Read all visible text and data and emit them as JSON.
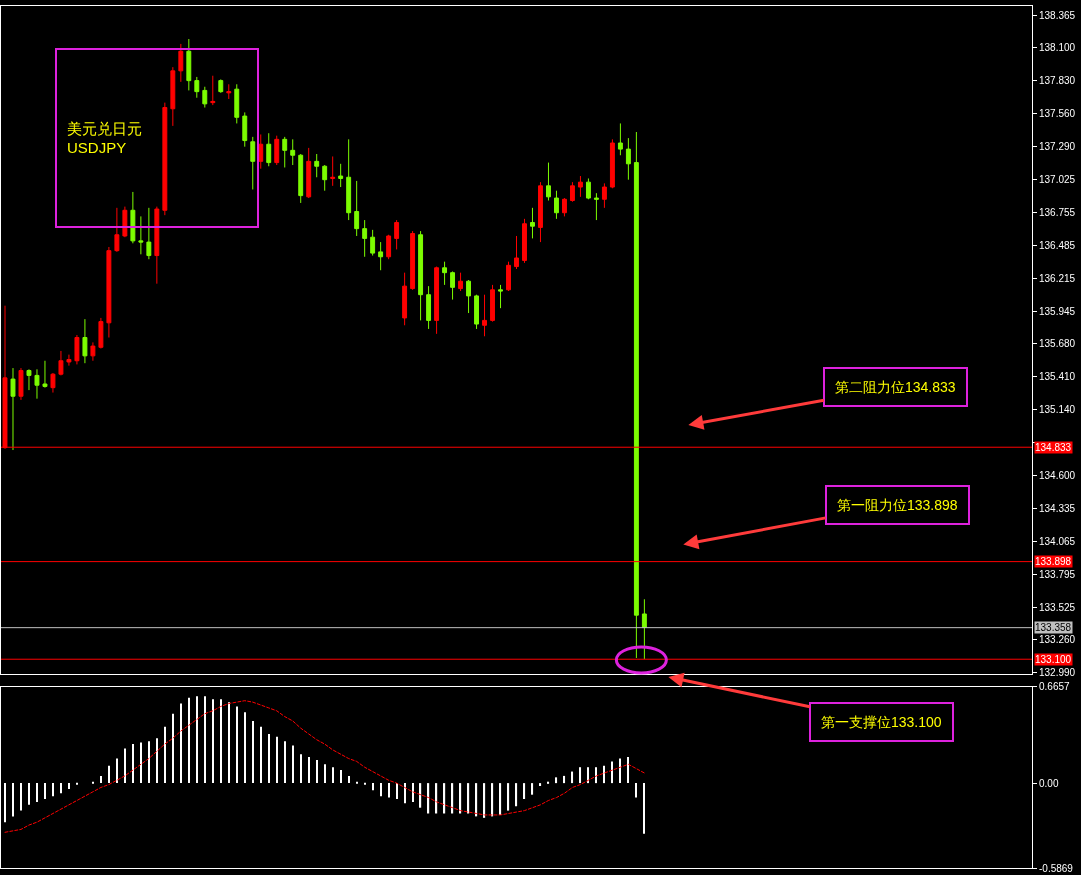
{
  "chart_data": [
    {
      "type": "candlestick",
      "categories": [
        null,
        null,
        null,
        null,
        null,
        null,
        null,
        null,
        null,
        null,
        null,
        null,
        null,
        null,
        null,
        null,
        null,
        null,
        null,
        null,
        null,
        null,
        null,
        null,
        null,
        null,
        null,
        null,
        null,
        null,
        null,
        null,
        null,
        null,
        null,
        null,
        null,
        null,
        null,
        null,
        null,
        null,
        null,
        null,
        null,
        null,
        null,
        null,
        null,
        null,
        null,
        null,
        null,
        null,
        null,
        null,
        null,
        null,
        null,
        null,
        null,
        null,
        null,
        null,
        null,
        null,
        null,
        null,
        null,
        null,
        null,
        null,
        null,
        null,
        null,
        null,
        null,
        null,
        null,
        null,
        null,
        null,
        null,
        null,
        null,
        null,
        null,
        null,
        null,
        null,
        null,
        null,
        null,
        null,
        null,
        null,
        null,
        null,
        null,
        null,
        null,
        null,
        null,
        null,
        null,
        null,
        null,
        null,
        null,
        null,
        null,
        null,
        null,
        null,
        null,
        null,
        null,
        null,
        null,
        null,
        null,
        null,
        null,
        null,
        null,
        null,
        null,
        null,
        null
      ],
      "ohlc": [
        [
          134.83,
          135.99,
          134.82,
          135.4
        ],
        [
          135.39,
          135.48,
          134.81,
          135.25
        ],
        [
          135.25,
          135.48,
          135.22,
          135.46
        ],
        [
          135.46,
          135.47,
          135.3,
          135.42
        ],
        [
          135.42,
          135.47,
          135.23,
          135.34
        ],
        [
          135.35,
          135.54,
          135.32,
          135.33
        ],
        [
          135.32,
          135.44,
          135.28,
          135.43
        ],
        [
          135.43,
          135.62,
          135.42,
          135.54
        ],
        [
          135.53,
          135.59,
          135.5,
          135.55
        ],
        [
          135.54,
          135.75,
          135.51,
          135.73
        ],
        [
          135.73,
          135.88,
          135.52,
          135.58
        ],
        [
          135.58,
          135.69,
          135.54,
          135.66
        ],
        [
          135.65,
          135.89,
          135.64,
          135.86
        ],
        [
          135.85,
          136.47,
          135.73,
          136.44
        ],
        [
          136.44,
          136.79,
          136.43,
          136.57
        ],
        [
          136.56,
          136.8,
          136.55,
          136.77
        ],
        [
          136.77,
          136.92,
          136.5,
          136.52
        ],
        [
          136.52,
          136.72,
          136.41,
          136.51
        ],
        [
          136.51,
          136.79,
          136.37,
          136.4
        ],
        [
          136.4,
          136.8,
          136.17,
          136.78
        ],
        [
          136.77,
          137.65,
          136.73,
          137.61
        ],
        [
          137.6,
          137.94,
          137.46,
          137.91
        ],
        [
          137.91,
          138.13,
          137.82,
          138.07
        ],
        [
          138.07,
          138.17,
          137.75,
          137.83
        ],
        [
          137.83,
          137.86,
          137.69,
          137.74
        ],
        [
          137.75,
          137.78,
          137.61,
          137.64
        ],
        [
          137.65,
          137.87,
          137.63,
          137.66
        ],
        [
          137.83,
          137.84,
          137.73,
          137.74
        ],
        [
          137.73,
          137.8,
          137.68,
          137.74
        ],
        [
          137.76,
          137.8,
          137.48,
          137.53
        ],
        [
          137.54,
          137.57,
          137.29,
          137.34
        ],
        [
          137.33,
          137.37,
          136.94,
          137.17
        ],
        [
          137.17,
          137.39,
          137.11,
          137.31
        ],
        [
          137.31,
          137.4,
          137.13,
          137.16
        ],
        [
          137.16,
          137.38,
          137.14,
          137.35
        ],
        [
          137.35,
          137.37,
          137.12,
          137.26
        ],
        [
          137.26,
          137.35,
          137.14,
          137.22
        ],
        [
          137.22,
          137.23,
          136.83,
          136.89
        ],
        [
          136.88,
          137.28,
          136.87,
          137.17
        ],
        [
          137.17,
          137.23,
          137.04,
          137.13
        ],
        [
          137.13,
          137.14,
          136.93,
          137.02
        ],
        [
          137.03,
          137.21,
          136.97,
          137.04
        ],
        [
          137.05,
          137.15,
          136.96,
          137.03
        ],
        [
          137.04,
          137.35,
          136.69,
          136.75
        ],
        [
          136.76,
          137.01,
          136.56,
          136.62
        ],
        [
          136.62,
          136.69,
          136.39,
          136.54
        ],
        [
          136.55,
          136.61,
          136.4,
          136.42
        ],
        [
          136.43,
          136.51,
          136.28,
          136.39
        ],
        [
          136.39,
          136.57,
          136.37,
          136.56
        ],
        [
          136.54,
          136.69,
          136.45,
          136.67
        ],
        [
          135.89,
          136.26,
          135.83,
          136.15
        ],
        [
          136.13,
          136.6,
          136.12,
          136.58
        ],
        [
          136.57,
          136.6,
          135.87,
          136.08
        ],
        [
          136.08,
          136.15,
          135.8,
          135.87
        ],
        [
          135.87,
          136.31,
          135.76,
          136.3
        ],
        [
          136.3,
          136.35,
          136.16,
          136.26
        ],
        [
          136.26,
          136.27,
          136.04,
          136.14
        ],
        [
          136.13,
          136.26,
          136.11,
          136.19
        ],
        [
          136.19,
          136.2,
          135.93,
          136.07
        ],
        [
          136.07,
          136.08,
          135.8,
          135.84
        ],
        [
          135.83,
          136.08,
          135.74,
          135.87
        ],
        [
          135.87,
          136.16,
          135.86,
          136.12
        ],
        [
          136.12,
          136.16,
          135.97,
          136.11
        ],
        [
          136.12,
          136.35,
          136.11,
          136.32
        ],
        [
          136.31,
          136.56,
          136.29,
          136.38
        ],
        [
          136.36,
          136.7,
          136.34,
          136.66
        ],
        [
          136.67,
          136.79,
          136.54,
          136.64
        ],
        [
          136.63,
          137.0,
          136.51,
          136.97
        ],
        [
          136.97,
          137.16,
          136.85,
          136.88
        ],
        [
          136.87,
          136.93,
          136.7,
          136.75
        ],
        [
          136.75,
          136.87,
          136.72,
          136.86
        ],
        [
          136.85,
          137.0,
          136.84,
          136.97
        ],
        [
          136.96,
          137.05,
          136.88,
          137.0
        ],
        [
          137.0,
          137.03,
          136.86,
          136.87
        ],
        [
          136.87,
          136.91,
          136.69,
          136.86
        ],
        [
          136.86,
          136.99,
          136.79,
          136.96
        ],
        [
          136.96,
          137.35,
          136.95,
          137.32
        ],
        [
          137.32,
          137.48,
          137.22,
          137.27
        ],
        [
          137.27,
          137.36,
          137.02,
          137.15
        ],
        [
          137.16,
          137.41,
          133.11,
          133.46
        ],
        [
          133.47,
          133.59,
          133.1,
          133.36
        ],
        null,
        null,
        null,
        null,
        null,
        null,
        null,
        null,
        null,
        null,
        null,
        null,
        null,
        null,
        null,
        null,
        null,
        null,
        null,
        null,
        null,
        null,
        null,
        null,
        null,
        null,
        null,
        null,
        null,
        null,
        null,
        null,
        null,
        null,
        null,
        null,
        null,
        null,
        null,
        null,
        null,
        null,
        null,
        null,
        null,
        null,
        null,
        null
      ],
      "colors": [
        "#ff0000",
        "#7cfc00",
        "#ff0000",
        "#7cfc00",
        "#7cfc00",
        "#7cfc00",
        "#ff0000",
        "#ff0000",
        "#ff0000",
        "#ff0000",
        "#7cfc00",
        "#ff0000",
        "#ff0000",
        "#ff0000",
        "#ff0000",
        "#ff0000",
        "#7cfc00",
        "#7cfc00",
        "#7cfc00",
        "#ff0000",
        "#ff0000",
        "#ff0000",
        "#ff0000",
        "#7cfc00",
        "#7cfc00",
        "#7cfc00",
        "#ff0000",
        "#7cfc00",
        "#ff0000",
        "#7cfc00",
        "#7cfc00",
        "#7cfc00",
        "#ff0000",
        "#7cfc00",
        "#ff0000",
        "#7cfc00",
        "#7cfc00",
        "#7cfc00",
        "#ff0000",
        "#7cfc00",
        "#7cfc00",
        "#ff0000",
        "#7cfc00",
        "#7cfc00",
        "#7cfc00",
        "#7cfc00",
        "#7cfc00",
        "#7cfc00",
        "#ff0000",
        "#ff0000",
        "#ff0000",
        "#ff0000",
        "#7cfc00",
        "#7cfc00",
        "#ff0000",
        "#7cfc00",
        "#7cfc00",
        "#ff0000",
        "#7cfc00",
        "#7cfc00",
        "#ff0000",
        "#ff0000",
        "#7cfc00",
        "#ff0000",
        "#ff0000",
        "#ff0000",
        "#7cfc00",
        "#ff0000",
        "#7cfc00",
        "#7cfc00",
        "#ff0000",
        "#ff0000",
        "#ff0000",
        "#7cfc00",
        "#7cfc00",
        "#ff0000",
        "#ff0000",
        "#7cfc00",
        "#7cfc00",
        "#7cfc00",
        "#7cfc00",
        null,
        null,
        null,
        null,
        null,
        null,
        null,
        null,
        null,
        null,
        null,
        null,
        null,
        null,
        null,
        null,
        null,
        null,
        null,
        null,
        null,
        null,
        null,
        null,
        null,
        null,
        null,
        null,
        null,
        null,
        null,
        null,
        null,
        null,
        null,
        null,
        null,
        null,
        null,
        null,
        null,
        null,
        null,
        null,
        null,
        null,
        null,
        null
      ],
      "ylim": [
        132.98,
        138.44
      ],
      "yticks": [
        138.365,
        {
          "value": 138.1,
          "label": "138.100"
        },
        {
          "value": 137.83,
          "label": "137.830"
        },
        {
          "value": 137.56,
          "label": "137.560"
        },
        {
          "value": 137.29,
          "label": "137.290"
        },
        137.025,
        136.755,
        136.485,
        136.215,
        135.945,
        {
          "value": 135.68,
          "label": "135.680"
        },
        {
          "value": 135.41,
          "label": "135.410"
        },
        {
          "value": 135.14,
          "label": "135.140"
        },
        {
          "value": 134.87,
          "label": null
        },
        {
          "value": 134.6,
          "label": "134.600"
        },
        134.335,
        134.065,
        133.795,
        133.525,
        {
          "value": 133.26,
          "label": "133.260"
        },
        {
          "value": 132.99,
          "label": "132.990"
        }
      ],
      "tick_labels": "y",
      "ref_lines": [
        {
          "axis": "y",
          "value": 134.833,
          "label": "134.833",
          "color": "#ff0000"
        },
        {
          "axis": "y",
          "value": 133.898,
          "label": "133.898",
          "color": "#ff0000"
        },
        {
          "axis": "y",
          "value": 133.358,
          "label": "133.358",
          "color": "#c0c0c0"
        },
        {
          "axis": "y",
          "value": 133.1,
          "label": "133.100",
          "color": "#ff0000"
        }
      ],
      "annotations": [
        "美元兑日元\nUSDJPY",
        "第二阻力位134.833",
        "第一阻力位133.898",
        "第一支撑位133.100"
      ]
    },
    {
      "type": "bar",
      "categories": [
        null,
        null,
        null,
        null,
        null,
        null,
        null,
        null,
        null,
        null,
        null,
        null,
        null,
        null,
        null,
        null,
        null,
        null,
        null,
        null,
        null,
        null,
        null,
        null,
        null,
        null,
        null,
        null,
        null,
        null,
        null,
        null,
        null,
        null,
        null,
        null,
        null,
        null,
        null,
        null,
        null,
        null,
        null,
        null,
        null,
        null,
        null,
        null,
        null,
        null,
        null,
        null,
        null,
        null,
        null,
        null,
        null,
        null,
        null,
        null,
        null,
        null,
        null,
        null,
        null,
        null,
        null,
        null,
        null,
        null,
        null,
        null,
        null,
        null,
        null,
        null,
        null,
        null,
        null,
        null,
        null,
        null,
        null,
        null,
        null,
        null,
        null,
        null,
        null,
        null,
        null,
        null,
        null,
        null,
        null,
        null,
        null,
        null,
        null,
        null,
        null,
        null,
        null,
        null,
        null,
        null,
        null,
        null,
        null,
        null,
        null,
        null,
        null,
        null,
        null,
        null,
        null,
        null,
        null,
        null,
        null,
        null,
        null,
        null,
        null,
        null,
        null,
        null,
        null
      ],
      "series": [
        {
          "type": "bar",
          "color": "#ffffff",
          "values": [
            -0.27,
            -0.23,
            -0.19,
            -0.15,
            -0.13,
            -0.11,
            -0.09,
            -0.07,
            -0.04,
            -0.01,
            0.0,
            0.01,
            0.05,
            0.12,
            0.17,
            0.24,
            0.27,
            0.28,
            0.29,
            0.31,
            0.39,
            0.48,
            0.55,
            0.59,
            0.6,
            0.6,
            0.58,
            0.58,
            0.56,
            0.53,
            0.49,
            0.43,
            0.39,
            0.34,
            0.32,
            0.29,
            0.26,
            0.2,
            0.18,
            0.16,
            0.13,
            0.11,
            0.09,
            0.05,
            0.01,
            -0.01,
            -0.05,
            -0.09,
            -0.1,
            -0.11,
            -0.14,
            -0.13,
            -0.17,
            -0.21,
            -0.21,
            -0.21,
            -0.21,
            -0.21,
            -0.21,
            -0.23,
            -0.24,
            -0.23,
            -0.22,
            -0.19,
            -0.16,
            -0.11,
            -0.08,
            -0.02,
            0.01,
            0.04,
            0.05,
            0.08,
            0.11,
            0.11,
            0.11,
            0.12,
            0.15,
            0.17,
            0.18,
            -0.1,
            -0.35,
            null,
            null,
            null,
            null,
            null,
            null,
            null,
            null,
            null,
            null,
            null,
            null,
            null,
            null,
            null,
            null,
            null,
            null,
            null,
            null,
            null,
            null,
            null,
            null,
            null,
            null,
            null,
            null,
            null,
            null,
            null,
            null,
            null,
            null,
            null,
            null,
            null,
            null,
            null,
            null,
            null,
            null,
            null,
            null,
            null,
            null,
            null,
            null
          ]
        },
        {
          "type": "line",
          "color": "#ff0000",
          "line_style": "dashed",
          "values": [
            -0.34,
            -0.33,
            -0.32,
            -0.29,
            -0.27,
            -0.24,
            -0.21,
            -0.18,
            -0.15,
            -0.12,
            -0.09,
            -0.06,
            -0.03,
            -0.01,
            0.02,
            0.05,
            0.09,
            0.13,
            0.17,
            0.22,
            0.27,
            0.31,
            0.36,
            0.4,
            0.44,
            0.48,
            0.5,
            0.53,
            0.55,
            0.56,
            0.57,
            0.56,
            0.54,
            0.52,
            0.5,
            0.46,
            0.43,
            0.38,
            0.34,
            0.3,
            0.27,
            0.23,
            0.2,
            0.17,
            0.15,
            0.11,
            0.08,
            0.05,
            0.02,
            0.0,
            -0.03,
            -0.06,
            -0.08,
            -0.1,
            -0.13,
            -0.15,
            -0.17,
            -0.19,
            -0.2,
            -0.21,
            -0.22,
            -0.22,
            -0.22,
            -0.21,
            -0.2,
            -0.19,
            -0.17,
            -0.15,
            -0.12,
            -0.1,
            -0.07,
            -0.03,
            -0.01,
            0.02,
            0.05,
            0.07,
            0.09,
            0.11,
            0.13,
            0.1,
            0.07,
            null,
            null,
            null,
            null,
            null,
            null,
            null,
            null,
            null,
            null,
            null,
            null,
            null,
            null,
            null,
            null,
            null,
            null,
            null,
            null,
            null,
            null,
            null,
            null,
            null,
            null,
            null,
            null,
            null,
            null,
            null,
            null,
            null,
            null,
            null,
            null,
            null,
            null,
            null,
            null,
            null,
            null,
            null,
            null,
            null,
            null,
            null,
            null
          ]
        }
      ],
      "ylim": [
        -0.5869,
        0.6657
      ],
      "yticks": [
        0.6657,
        {
          "value": 0,
          "label": "0.00"
        },
        -0.5869
      ],
      "tick_labels": "y"
    }
  ]
}
